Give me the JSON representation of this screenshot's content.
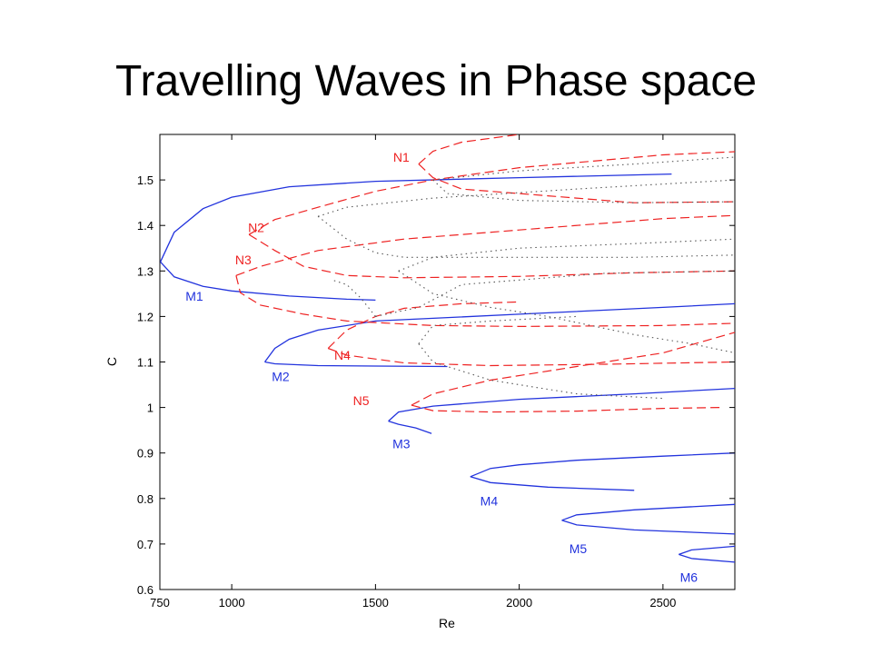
{
  "page": {
    "title": "Travelling Waves in Phase space"
  },
  "colors": {
    "blue": "#2233dd",
    "red": "#ee2222",
    "gray": "#555555",
    "axis": "#000000"
  },
  "chart_data": {
    "type": "line",
    "title": "",
    "xlabel": "Re",
    "ylabel": "C",
    "xlim": [
      750,
      2750
    ],
    "ylim": [
      0.6,
      1.6
    ],
    "xticks": [
      750,
      1000,
      1500,
      2000,
      2500
    ],
    "yticks": [
      0.6,
      0.7,
      0.8,
      0.9,
      1,
      1.1,
      1.2,
      1.3,
      1.4,
      1.5
    ],
    "grid": false,
    "series": [
      {
        "name": "M1",
        "style": "solid",
        "color": "blue",
        "label_at": [
          870,
          1.245
        ],
        "upper": [
          [
            752,
            1.32
          ],
          [
            800,
            1.385
          ],
          [
            900,
            1.437
          ],
          [
            1000,
            1.462
          ],
          [
            1200,
            1.485
          ],
          [
            1500,
            1.497
          ],
          [
            2000,
            1.505
          ],
          [
            2530,
            1.513
          ]
        ],
        "lower": [
          [
            752,
            1.32
          ],
          [
            800,
            1.287
          ],
          [
            900,
            1.266
          ],
          [
            1000,
            1.256
          ],
          [
            1200,
            1.245
          ],
          [
            1400,
            1.238
          ],
          [
            1500,
            1.236
          ]
        ]
      },
      {
        "name": "M2",
        "style": "solid",
        "color": "blue",
        "label_at": [
          1170,
          1.068
        ],
        "upper": [
          [
            1115,
            1.1
          ],
          [
            1150,
            1.13
          ],
          [
            1200,
            1.15
          ],
          [
            1300,
            1.17
          ],
          [
            1500,
            1.19
          ],
          [
            2000,
            1.205
          ],
          [
            2500,
            1.22
          ],
          [
            2750,
            1.228
          ]
        ],
        "lower": [
          [
            1115,
            1.1
          ],
          [
            1150,
            1.096
          ],
          [
            1300,
            1.092
          ],
          [
            1500,
            1.091
          ],
          [
            1750,
            1.09
          ]
        ]
      },
      {
        "name": "M3",
        "style": "solid",
        "color": "blue",
        "label_at": [
          1590,
          0.92
        ],
        "upper": [
          [
            1545,
            0.97
          ],
          [
            1580,
            0.99
          ],
          [
            1700,
            1.003
          ],
          [
            2000,
            1.018
          ],
          [
            2400,
            1.03
          ],
          [
            2750,
            1.042
          ]
        ],
        "lower": [
          [
            1545,
            0.97
          ],
          [
            1580,
            0.963
          ],
          [
            1640,
            0.955
          ],
          [
            1695,
            0.943
          ]
        ]
      },
      {
        "name": "M4",
        "style": "solid",
        "color": "blue",
        "label_at": [
          1895,
          0.795
        ],
        "upper": [
          [
            1830,
            0.848
          ],
          [
            1900,
            0.866
          ],
          [
            2000,
            0.874
          ],
          [
            2200,
            0.884
          ],
          [
            2500,
            0.893
          ],
          [
            2750,
            0.9
          ]
        ],
        "lower": [
          [
            1830,
            0.848
          ],
          [
            1900,
            0.835
          ],
          [
            2100,
            0.825
          ],
          [
            2400,
            0.818
          ]
        ]
      },
      {
        "name": "M5",
        "style": "solid",
        "color": "blue",
        "label_at": [
          2205,
          0.69
        ],
        "upper": [
          [
            2148,
            0.752
          ],
          [
            2200,
            0.764
          ],
          [
            2400,
            0.775
          ],
          [
            2750,
            0.787
          ]
        ],
        "lower": [
          [
            2148,
            0.752
          ],
          [
            2200,
            0.742
          ],
          [
            2400,
            0.731
          ],
          [
            2750,
            0.722
          ]
        ]
      },
      {
        "name": "M6",
        "style": "solid",
        "color": "blue",
        "label_at": [
          2590,
          0.627
        ],
        "upper": [
          [
            2555,
            0.677
          ],
          [
            2600,
            0.687
          ],
          [
            2750,
            0.695
          ]
        ],
        "lower": [
          [
            2555,
            0.677
          ],
          [
            2600,
            0.668
          ],
          [
            2750,
            0.66
          ]
        ]
      },
      {
        "name": "N1",
        "style": "dashed",
        "color": "red",
        "label_at": [
          1590,
          1.55
        ],
        "upper": [
          [
            1650,
            1.535
          ],
          [
            1700,
            1.563
          ],
          [
            1800,
            1.583
          ],
          [
            2000,
            1.6
          ]
        ],
        "lower": [
          [
            1650,
            1.535
          ],
          [
            1700,
            1.505
          ],
          [
            1800,
            1.48
          ],
          [
            2100,
            1.465
          ],
          [
            2400,
            1.45
          ],
          [
            2750,
            1.452
          ]
        ]
      },
      {
        "name": "N2",
        "style": "dashed",
        "color": "red",
        "label_at": [
          1085,
          1.395
        ],
        "upper": [
          [
            1060,
            1.38
          ],
          [
            1150,
            1.413
          ],
          [
            1300,
            1.44
          ],
          [
            1500,
            1.475
          ],
          [
            1700,
            1.5
          ],
          [
            2000,
            1.527
          ],
          [
            2500,
            1.555
          ],
          [
            2750,
            1.562
          ]
        ],
        "lower": [
          [
            1060,
            1.38
          ],
          [
            1150,
            1.345
          ],
          [
            1250,
            1.31
          ],
          [
            1400,
            1.29
          ],
          [
            1600,
            1.285
          ],
          [
            2000,
            1.288
          ],
          [
            2400,
            1.296
          ],
          [
            2750,
            1.3
          ]
        ]
      },
      {
        "name": "N3",
        "style": "dashed",
        "color": "red",
        "label_at": [
          1040,
          1.325
        ],
        "upper": [
          [
            1015,
            1.29
          ],
          [
            1100,
            1.31
          ],
          [
            1300,
            1.345
          ],
          [
            1600,
            1.37
          ],
          [
            2000,
            1.39
          ],
          [
            2500,
            1.415
          ],
          [
            2750,
            1.422
          ]
        ],
        "lower": [
          [
            1015,
            1.29
          ],
          [
            1030,
            1.252
          ],
          [
            1100,
            1.225
          ],
          [
            1250,
            1.205
          ],
          [
            1400,
            1.19
          ],
          [
            1700,
            1.18
          ],
          [
            2000,
            1.178
          ],
          [
            2500,
            1.18
          ],
          [
            2750,
            1.185
          ]
        ]
      },
      {
        "name": "N4",
        "style": "dashed",
        "color": "red",
        "label_at": [
          1385,
          1.115
        ],
        "upper": [
          [
            1335,
            1.13
          ],
          [
            1400,
            1.17
          ],
          [
            1500,
            1.2
          ],
          [
            1600,
            1.218
          ],
          [
            1800,
            1.228
          ],
          [
            2000,
            1.232
          ]
        ],
        "lower": [
          [
            1335,
            1.13
          ],
          [
            1400,
            1.115
          ],
          [
            1600,
            1.098
          ],
          [
            1900,
            1.092
          ],
          [
            2300,
            1.095
          ],
          [
            2750,
            1.1
          ]
        ]
      },
      {
        "name": "N5",
        "style": "dashed",
        "color": "red",
        "label_at": [
          1450,
          1.015
        ],
        "upper": [
          [
            1625,
            1.005
          ],
          [
            1700,
            1.03
          ],
          [
            1900,
            1.06
          ],
          [
            2200,
            1.09
          ],
          [
            2500,
            1.12
          ],
          [
            2750,
            1.165
          ]
        ],
        "lower": [
          [
            1625,
            1.005
          ],
          [
            1700,
            0.993
          ],
          [
            1900,
            0.99
          ],
          [
            2200,
            0.992
          ],
          [
            2500,
            0.998
          ],
          [
            2700,
            1.0
          ]
        ]
      },
      {
        "name": "",
        "style": "dotted",
        "color": "gray",
        "upper": [
          [
            1700,
            1.5
          ],
          [
            2000,
            1.52
          ],
          [
            2400,
            1.535
          ],
          [
            2750,
            1.55
          ]
        ],
        "lower": [
          [
            1700,
            1.5
          ],
          [
            1750,
            1.47
          ],
          [
            2000,
            1.455
          ],
          [
            2400,
            1.45
          ],
          [
            2750,
            1.452
          ]
        ]
      },
      {
        "name": "",
        "style": "dotted",
        "color": "gray",
        "upper": [
          [
            1300,
            1.42
          ],
          [
            1400,
            1.37
          ],
          [
            1500,
            1.34
          ],
          [
            1600,
            1.33
          ],
          [
            1900,
            1.33
          ],
          [
            2400,
            1.33
          ],
          [
            2750,
            1.335
          ]
        ],
        "lower": [
          [
            1300,
            1.42
          ],
          [
            1400,
            1.44
          ],
          [
            1700,
            1.46
          ],
          [
            2200,
            1.48
          ],
          [
            2750,
            1.5
          ]
        ]
      },
      {
        "name": "",
        "style": "dotted",
        "color": "gray",
        "upper": [
          [
            1580,
            1.3
          ],
          [
            1700,
            1.33
          ],
          [
            2000,
            1.35
          ],
          [
            2400,
            1.36
          ],
          [
            2750,
            1.37
          ]
        ],
        "lower": [
          [
            1580,
            1.3
          ],
          [
            1700,
            1.25
          ],
          [
            1900,
            1.22
          ],
          [
            2100,
            1.2
          ],
          [
            2400,
            1.16
          ],
          [
            2600,
            1.14
          ],
          [
            2750,
            1.12
          ]
        ]
      },
      {
        "name": "",
        "style": "dotted",
        "color": "gray",
        "upper": [
          [
            1500,
            1.2
          ],
          [
            1650,
            1.22
          ],
          [
            1800,
            1.27
          ],
          [
            2000,
            1.28
          ],
          [
            2300,
            1.295
          ],
          [
            2750,
            1.3
          ]
        ],
        "lower": [
          [
            1500,
            1.2
          ],
          [
            1450,
            1.24
          ],
          [
            1400,
            1.27
          ],
          [
            1350,
            1.28
          ]
        ]
      },
      {
        "name": "",
        "style": "dotted",
        "color": "gray",
        "upper": [
          [
            1650,
            1.14
          ],
          [
            1700,
            1.18
          ],
          [
            1900,
            1.19
          ],
          [
            2200,
            1.2
          ]
        ],
        "lower": [
          [
            1650,
            1.14
          ],
          [
            1700,
            1.1
          ],
          [
            1900,
            1.06
          ],
          [
            2200,
            1.03
          ],
          [
            2500,
            1.02
          ]
        ]
      }
    ]
  }
}
